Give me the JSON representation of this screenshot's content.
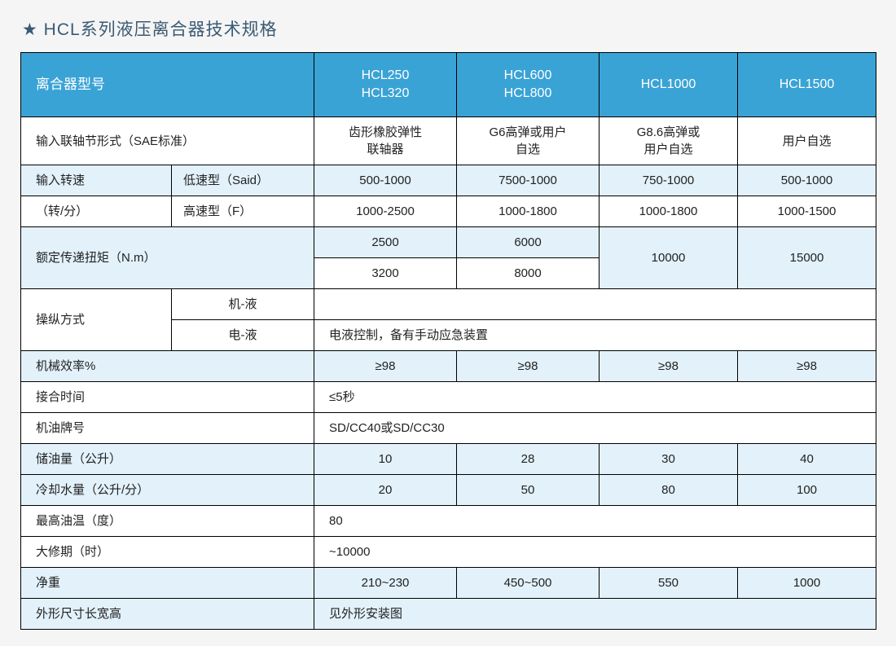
{
  "typography": {
    "title_color": "#3a5a74",
    "title_fontsize": 21,
    "header_bg": "#3aa3d6",
    "header_fg": "#ffffff",
    "alt_row_bg": "#e2f1fa",
    "row_bg": "#ffffff",
    "border_color": "#000000",
    "cell_fontsize": 15
  },
  "title": "★ HCL系列液压离合器技术规格",
  "header": {
    "model_label": "离合器型号",
    "col1": "HCL250\nHCL320",
    "col2": "HCL600\nHCL800",
    "col3": "HCL1000",
    "col4": "HCL1500"
  },
  "rows": {
    "coupling": {
      "label": "输入联轴节形式（SAE标准）",
      "c1": "齿形橡胶弹性\n联轴器",
      "c2": "G6高弹或用户\n自选",
      "c3": "G8.6高弹或\n用户自选",
      "c4": "用户自选"
    },
    "input_speed": {
      "label": "输入转速",
      "unit_label": "（转/分）",
      "low_label": "低速型（Said）",
      "high_label": "高速型（F）",
      "low": {
        "c1": "500-1000",
        "c2": "7500-1000",
        "c3": "750-1000",
        "c4": "500-1000"
      },
      "high": {
        "c1": "1000-2500",
        "c2": "1000-1800",
        "c3": "1000-1800",
        "c4": "1000-1500"
      }
    },
    "rated_torque": {
      "label": "额定传递扭矩（N.m）",
      "row1": {
        "c1": "2500",
        "c2": "6000"
      },
      "row2": {
        "c1": "3200",
        "c2": "8000"
      },
      "c3": "10000",
      "c4": "15000"
    },
    "operation": {
      "label": "操纵方式",
      "mech_label": "机-液",
      "elec_label": "电-液",
      "mech_val": "",
      "elec_val": "电液控制，备有手动应急装置"
    },
    "efficiency": {
      "label": "机械效率%",
      "c1": "≥98",
      "c2": "≥98",
      "c3": "≥98",
      "c4": "≥98"
    },
    "engage_time": {
      "label": "接合时间",
      "val": "≤5秒"
    },
    "oil_grade": {
      "label": "机油牌号",
      "val": "SD/CC40或SD/CC30"
    },
    "oil_capacity": {
      "label": "储油量（公升）",
      "c1": "10",
      "c2": "28",
      "c3": "30",
      "c4": "40"
    },
    "cooling_water": {
      "label": "冷却水量（公升/分）",
      "c1": "20",
      "c2": "50",
      "c3": "80",
      "c4": "100"
    },
    "max_oil_temp": {
      "label": "最高油温（度）",
      "val": "80"
    },
    "overhaul": {
      "label": "大修期（时）",
      "val": "~10000"
    },
    "net_weight": {
      "label": "净重",
      "c1": "210~230",
      "c2": "450~500",
      "c3": "550",
      "c4": "1000"
    },
    "dimensions": {
      "label": "外形尺寸长宽高",
      "val": "见外形安装图"
    }
  }
}
